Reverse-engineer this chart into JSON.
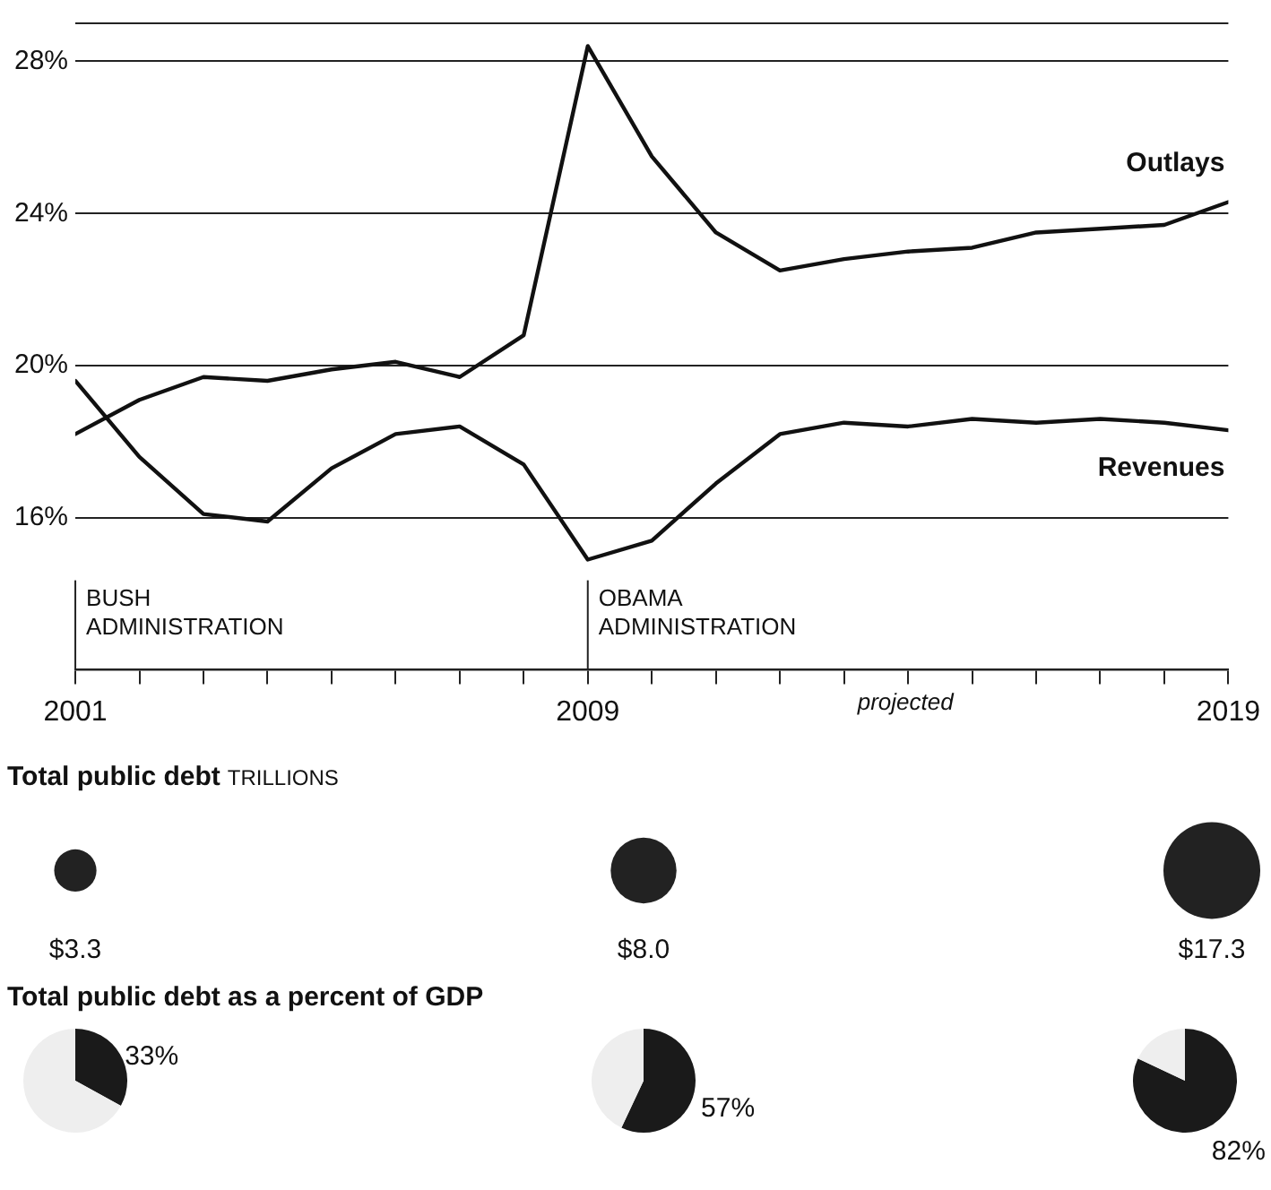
{
  "chart_data": [
    {
      "type": "line",
      "x": [
        2001,
        2002,
        2003,
        2004,
        2005,
        2006,
        2007,
        2008,
        2009,
        2010,
        2011,
        2012,
        2013,
        2014,
        2015,
        2016,
        2017,
        2018,
        2019
      ],
      "series": [
        {
          "name": "Outlays",
          "color": "#111111",
          "values": [
            18.2,
            19.1,
            19.7,
            19.6,
            19.9,
            20.1,
            19.7,
            20.8,
            28.4,
            25.5,
            23.5,
            22.5,
            22.8,
            23.0,
            23.1,
            23.5,
            23.6,
            23.7,
            24.3
          ]
        },
        {
          "name": "Revenues",
          "color": "#111111",
          "values": [
            19.6,
            17.6,
            16.1,
            15.9,
            17.3,
            18.2,
            18.4,
            17.4,
            14.9,
            15.4,
            16.9,
            18.2,
            18.5,
            18.4,
            18.6,
            18.5,
            18.6,
            18.5,
            18.3
          ]
        }
      ],
      "xlim": [
        2001,
        2019
      ],
      "xticks": [
        2001,
        {
          "value": 2002,
          "label": null
        },
        {
          "value": 2003,
          "label": null
        },
        {
          "value": 2004,
          "label": null
        },
        {
          "value": 2005,
          "label": null
        },
        {
          "value": 2006,
          "label": null
        },
        {
          "value": 2007,
          "label": null
        },
        {
          "value": 2008,
          "label": null
        },
        2009,
        {
          "value": 2010,
          "label": null
        },
        {
          "value": 2011,
          "label": null
        },
        {
          "value": 2012,
          "label": null
        },
        {
          "value": 2013,
          "label": null
        },
        {
          "value": 2014,
          "label": null
        },
        {
          "value": 2015,
          "label": null
        },
        {
          "value": 2016,
          "label": null
        },
        {
          "value": 2017,
          "label": null
        },
        {
          "value": 2018,
          "label": null
        },
        2019
      ],
      "ylim": [
        12,
        29
      ],
      "yticks": [
        {
          "value": 16,
          "label": "16%"
        },
        {
          "value": 20,
          "label": "20%"
        },
        {
          "value": 24,
          "label": "24%"
        },
        {
          "value": 28,
          "label": "28%"
        },
        {
          "value": 29,
          "label": null
        }
      ],
      "grid": "y",
      "legend": false,
      "ref_lines": [
        {
          "axis": "x",
          "value": 2001,
          "label": "BUSH ADMINISTRATION"
        },
        {
          "axis": "x",
          "value": 2009,
          "label": "OBAMA ADMINISTRATION"
        }
      ],
      "annotations": [
        "projected"
      ]
    },
    {
      "type": "other",
      "title": "Total public debt",
      "subtitle": "TRILLIONS",
      "categories": [
        null,
        null,
        null
      ],
      "values": [
        3.3,
        8.0,
        17.3
      ],
      "value_labels": [
        "$3.3",
        "$8.0",
        "$17.3"
      ],
      "color": "#222222"
    },
    {
      "type": "pie",
      "title": "Total public debt as a percent of GDP",
      "categories": [
        null,
        null
      ],
      "values": [
        33,
        67
      ],
      "colors": [
        "#1a1a1a",
        "#eeeeee"
      ],
      "value_labels": [
        "33%",
        null
      ],
      "legend": false
    },
    {
      "type": "pie",
      "categories": [
        null,
        null
      ],
      "values": [
        57,
        43
      ],
      "colors": [
        "#1a1a1a",
        "#eeeeee"
      ],
      "value_labels": [
        "57%",
        null
      ],
      "legend": false
    },
    {
      "type": "pie",
      "categories": [
        null,
        null
      ],
      "values": [
        82,
        18
      ],
      "colors": [
        "#1a1a1a",
        "#eeeeee"
      ],
      "value_labels": [
        "82%",
        null
      ],
      "legend": false
    }
  ]
}
